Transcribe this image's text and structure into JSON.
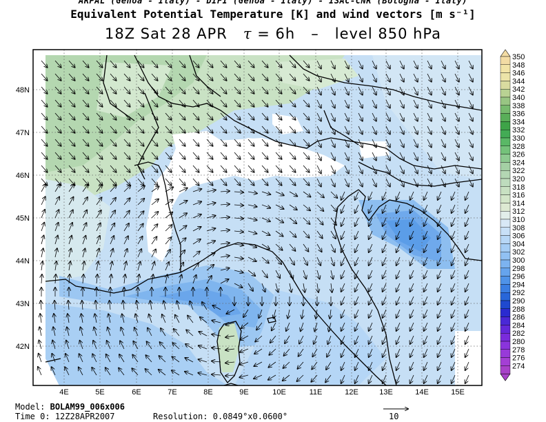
{
  "header": {
    "line1": "ARPAL (Genoa - Italy)  -  DIFI (Genoa - Italy)  -  ISAC-CNR (Bologna - Italy)",
    "line2": "Equivalent Potential Temperature [K] and wind vectors [m s⁻¹]",
    "line3_time": "18Z Sat 28 APR",
    "line3_tau_symbol": "τ",
    "line3_tau": "= 6h",
    "line3_sep": "–",
    "line3_level": "level 850 hPa"
  },
  "map": {
    "lat_labels": [
      "48N",
      "47N",
      "46N",
      "45N",
      "44N",
      "43N",
      "42N"
    ],
    "lon_labels": [
      "4E",
      "5E",
      "6E",
      "7E",
      "8E",
      "9E",
      "10E",
      "11E",
      "12E",
      "13E",
      "14E",
      "15E"
    ],
    "frame_color": "#000000",
    "grid_style": "dotted"
  },
  "colorbar": {
    "labels": [
      "350",
      "348",
      "346",
      "344",
      "342",
      "340",
      "338",
      "336",
      "334",
      "332",
      "330",
      "328",
      "326",
      "324",
      "322",
      "320",
      "318",
      "316",
      "314",
      "312",
      "310",
      "308",
      "306",
      "304",
      "302",
      "300",
      "298",
      "296",
      "294",
      "292",
      "290",
      "288",
      "286",
      "284",
      "282",
      "280",
      "278",
      "276",
      "274"
    ],
    "colors": [
      "#f3dca4",
      "#f2e4a6",
      "#ece4a8",
      "#d9dba0",
      "#b9d293",
      "#98c583",
      "#77ba6e",
      "#59ae59",
      "#3ea348",
      "#43ab55",
      "#5ab866",
      "#74c27a",
      "#8dca90",
      "#a4d0a4",
      "#b3d6b3",
      "#bedcbd",
      "#c8e1c2",
      "#d3e6c9",
      "#dde9d2",
      "#e2eeea",
      "#d8e8f6",
      "#c8e0f7",
      "#b7d7f6",
      "#a5cdf5",
      "#91c1f3",
      "#7cb3f0",
      "#66a4ed",
      "#4f93e8",
      "#3a7ee2",
      "#2866d9",
      "#1f49cf",
      "#2a2bd0",
      "#4a28d6",
      "#6328d9",
      "#7a2bdc",
      "#8a34dc",
      "#983ad9",
      "#a43fd4",
      "#a841c9"
    ]
  },
  "footer": {
    "model_label": "Model:",
    "model_value": "BOLAM99_006x006",
    "time_label": "Time 0:",
    "time_value": "12Z28APR2007",
    "resolution_label": "Resolution:",
    "resolution_value": "0.0849°x0.0600°",
    "vector_ref": "10"
  }
}
